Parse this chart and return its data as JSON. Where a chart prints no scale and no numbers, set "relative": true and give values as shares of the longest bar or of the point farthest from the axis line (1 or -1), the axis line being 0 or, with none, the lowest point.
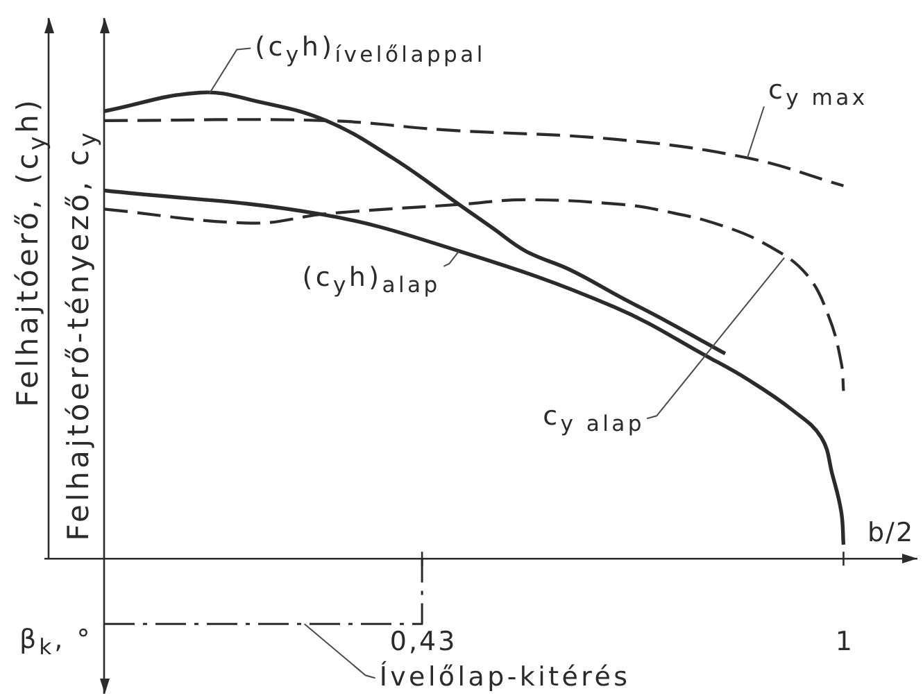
{
  "chart_data": {
    "type": "line",
    "relative": true,
    "xlabel": "b/2",
    "ylabel": "Felhajtóerő-tényező, c$_{y}$",
    "y2label": "Felhajtóerő, (c$_{y}$h)",
    "xlim": [
      0,
      1.1
    ],
    "xticks": [
      {
        "value": 0.43,
        "label": "0,43"
      },
      1
    ],
    "marker": "none",
    "annotations": [
      "β$_{k}$, °"
    ],
    "series": [
      {
        "name": "(c$_{y}$h)$_{ívelőlappal}$",
        "color": "#2b2b2b",
        "axis": "y2",
        "line_style": "solid",
        "x": [
          0,
          0.13,
          0.21,
          0.3,
          0.39,
          0.48,
          0.525,
          0.57,
          0.63,
          0.7,
          0.76,
          0.84
        ],
        "values": [
          0.96,
          1,
          0.98,
          0.94,
          0.86,
          0.76,
          0.71,
          0.66,
          0.62,
          0.56,
          0.51,
          0.44
        ]
      },
      {
        "name": "c$_{y max}$",
        "color": "#2b2b2b",
        "axis": "y",
        "line_style": "dashed",
        "x": [
          0,
          0.3,
          0.46,
          0.69,
          0.87,
          1
        ],
        "values": [
          0.94,
          0.94,
          0.92,
          0.9,
          0.86,
          0.8
        ]
      },
      {
        "name": "(c$_{y}$h)$_{alap}$",
        "color": "#2b2b2b",
        "axis": "y2",
        "line_style": "solid",
        "x": [
          0,
          0.29,
          0.48,
          0.69,
          0.82,
          0.87,
          0.93,
          0.97,
          0.985,
          0.997,
          1
        ],
        "values": [
          0.79,
          0.74,
          0.66,
          0.54,
          0.43,
          0.385,
          0.32,
          0.26,
          0.18,
          0.1,
          0.03
        ]
      },
      {
        "name": "c$_{y alap}$",
        "color": "#2b2b2b",
        "axis": "y",
        "line_style": "dashed",
        "x": [
          0,
          0.2,
          0.3,
          0.48,
          0.57,
          0.7,
          0.76,
          0.835,
          0.9,
          0.95,
          0.98,
          0.997,
          1
        ],
        "values": [
          0.75,
          0.72,
          0.74,
          0.76,
          0.77,
          0.76,
          0.745,
          0.715,
          0.67,
          0.61,
          0.52,
          0.42,
          0.36
        ]
      },
      {
        "name": "Ívelőlap-kitérés",
        "color": "#2b2b2b",
        "line_style": "dashdot",
        "x": [
          0,
          0.43,
          0.43
        ],
        "values": [
          -0.14,
          -0.14,
          0
        ]
      }
    ]
  }
}
